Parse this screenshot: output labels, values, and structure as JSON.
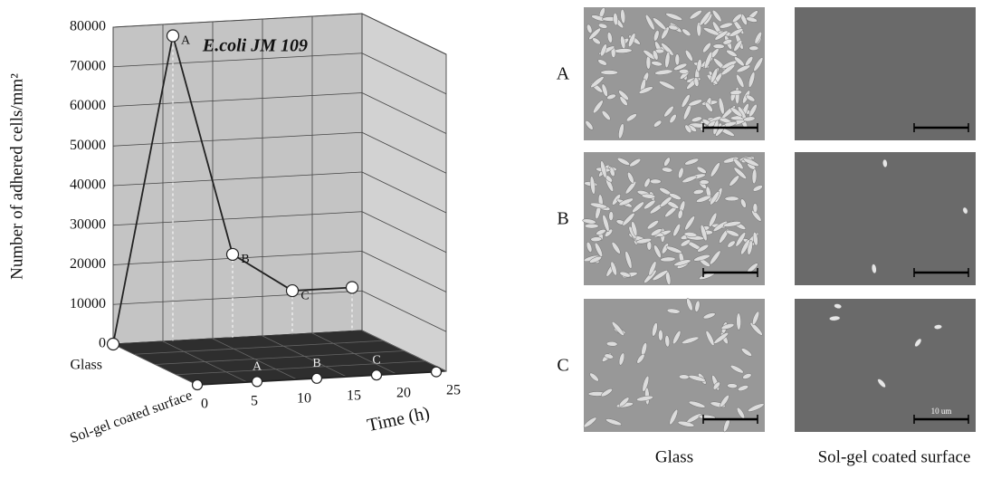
{
  "chart_data": {
    "type": "line3d",
    "title": "E.coli JM 109",
    "y_label": "Number of adhered cells/mm²",
    "x_label": "Time (h)",
    "x": [
      0,
      6,
      12,
      18,
      24
    ],
    "series": [
      {
        "name": "Glass",
        "color": "#222222",
        "values": [
          0,
          77000,
          21000,
          11000,
          11000
        ],
        "point_labels": [
          null,
          "A",
          "B",
          "C",
          null
        ]
      },
      {
        "name": "Sol-gel coated surface",
        "color": "#222222",
        "values": [
          0,
          0,
          0,
          0,
          0
        ],
        "point_labels": [
          null,
          "A",
          "B",
          "C",
          null
        ]
      }
    ],
    "xlim": [
      0,
      25
    ],
    "xticks": [
      0,
      5,
      10,
      15,
      20,
      25
    ],
    "ylim": [
      0,
      80000
    ],
    "yticks": [
      0,
      10000,
      20000,
      30000,
      40000,
      50000,
      60000,
      70000,
      80000
    ],
    "grid": true
  },
  "images": {
    "row_labels": [
      "A",
      "B",
      "C"
    ],
    "column_labels": [
      "Glass",
      "Sol-gel coated surface"
    ],
    "scale_label": "10 um"
  }
}
